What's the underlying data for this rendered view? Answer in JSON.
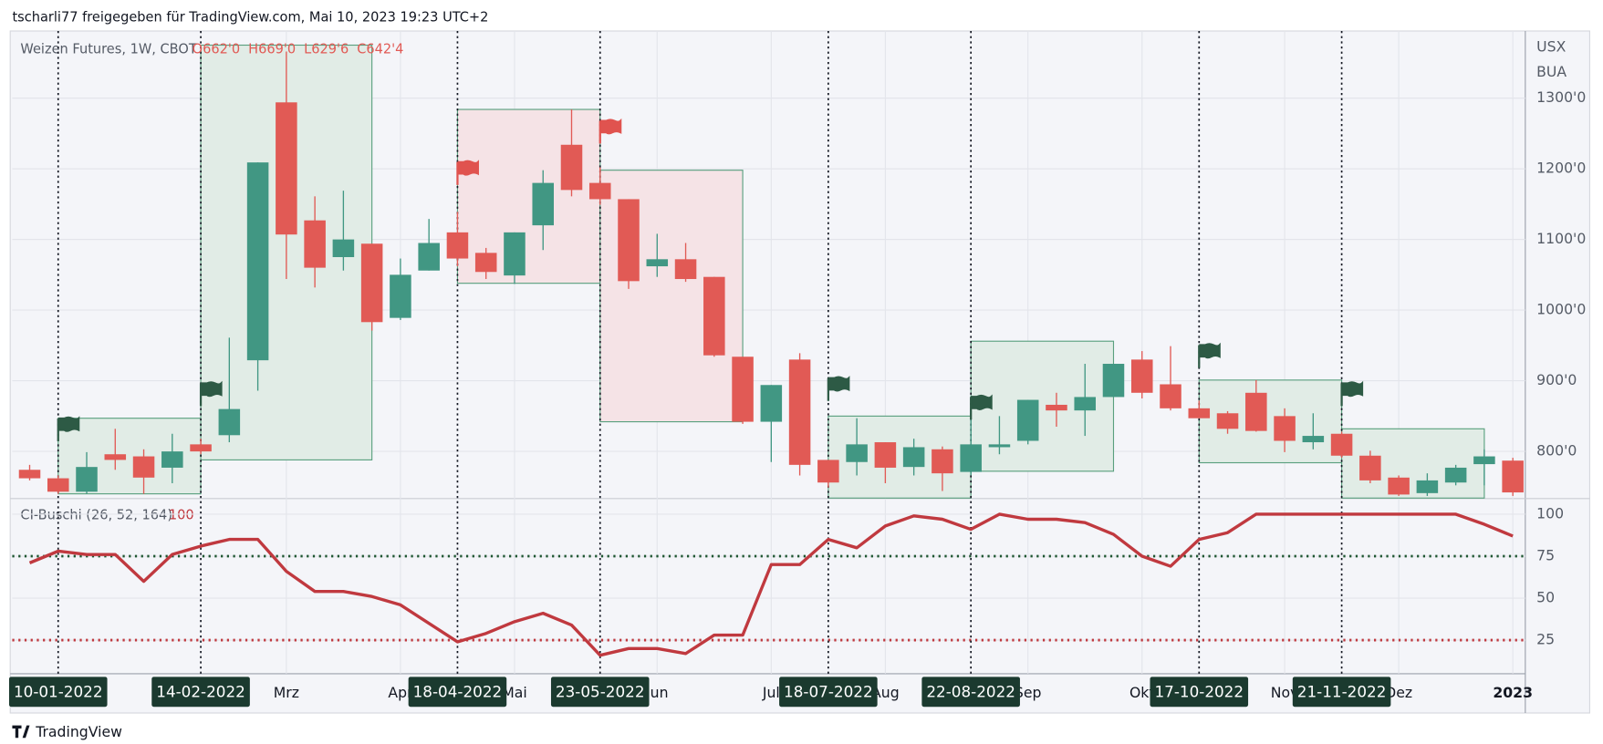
{
  "header": "tscharli77 freigegeben für TradingView.com, Mai 10, 2023 19:23 UTC+2",
  "footer": "TradingView",
  "chart_data": [
    {
      "type": "candlestick",
      "title": "Weizen Futures, 1W, CBOT",
      "ohlc_labels": [
        "O662'0",
        "H669'0",
        "L629'6",
        "C642'4"
      ],
      "axis_units": [
        "USX",
        "BUA"
      ],
      "up_color": "#419783",
      "down_color": "#e15a55",
      "x": [
        "03-01-2022",
        "10-01-2022",
        "17-01-2022",
        "24-01-2022",
        "31-01-2022",
        "07-02-2022",
        "14-02-2022",
        "21-02-2022",
        "28-02-2022",
        "07-03-2022",
        "14-03-2022",
        "21-03-2022",
        "28-03-2022",
        "04-04-2022",
        "11-04-2022",
        "18-04-2022",
        "25-04-2022",
        "02-05-2022",
        "09-05-2022",
        "16-05-2022",
        "23-05-2022",
        "30-05-2022",
        "06-06-2022",
        "13-06-2022",
        "20-06-2022",
        "27-06-2022",
        "04-07-2022",
        "11-07-2022",
        "18-07-2022",
        "25-07-2022",
        "01-08-2022",
        "08-08-2022",
        "15-08-2022",
        "22-08-2022",
        "29-08-2022",
        "05-09-2022",
        "12-09-2022",
        "19-09-2022",
        "26-09-2022",
        "03-10-2022",
        "10-10-2022",
        "17-10-2022",
        "24-10-2022",
        "31-10-2022",
        "07-11-2022",
        "14-11-2022",
        "21-11-2022",
        "28-11-2022",
        "05-12-2022",
        "12-12-2022",
        "19-12-2022",
        "26-12-2022",
        "02-01-2023"
      ],
      "open": [
        774,
        762,
        743,
        796,
        793,
        777,
        810,
        823,
        929,
        1294,
        1127,
        1075,
        1094,
        989,
        1056,
        1110,
        1081,
        1049,
        1120,
        1234,
        1180,
        1157,
        1062,
        1072,
        1047,
        934,
        842,
        930,
        788,
        785,
        813,
        778,
        803,
        771,
        806,
        815,
        866,
        858,
        877,
        930,
        895,
        861,
        854,
        883,
        850,
        813,
        825,
        794,
        763,
        741,
        756,
        782,
        787
      ],
      "high": [
        781,
        766,
        799,
        832,
        803,
        825,
        818,
        961,
        1209,
        1366,
        1161,
        1169,
        1094,
        1073,
        1129,
        1139,
        1088,
        1110,
        1198,
        1284,
        1202,
        1157,
        1108,
        1095,
        1047,
        934,
        894,
        939,
        788,
        847,
        813,
        818,
        807,
        854,
        850,
        873,
        883,
        924,
        924,
        942,
        949,
        872,
        857,
        901,
        861,
        854,
        828,
        801,
        766,
        769,
        781,
        803,
        791
      ],
      "low": [
        759,
        740,
        740,
        774,
        740,
        755,
        796,
        813,
        886,
        1044,
        1032,
        1056,
        971,
        986,
        1056,
        1062,
        1044,
        1037,
        1085,
        1161,
        1149,
        1030,
        1047,
        1040,
        934,
        839,
        785,
        766,
        749,
        766,
        755,
        766,
        744,
        766,
        796,
        810,
        835,
        822,
        877,
        875,
        858,
        847,
        825,
        828,
        799,
        803,
        791,
        755,
        737,
        737,
        752,
        752,
        737
      ],
      "close": [
        762,
        743,
        778,
        788,
        763,
        800,
        800,
        860,
        1209,
        1107,
        1060,
        1100,
        983,
        1050,
        1095,
        1073,
        1054,
        1110,
        1180,
        1170,
        1157,
        1041,
        1072,
        1044,
        936,
        842,
        894,
        781,
        756,
        810,
        777,
        806,
        769,
        810,
        810,
        873,
        858,
        877,
        924,
        883,
        861,
        847,
        832,
        829,
        815,
        822,
        794,
        759,
        739,
        759,
        777,
        793,
        742
      ],
      "ylim": [
        734,
        1395
      ],
      "yticks": [
        {
          "value": 1300,
          "label": "1300'0"
        },
        {
          "value": 1200,
          "label": "1200'0"
        },
        {
          "value": 1100,
          "label": "1100'0"
        },
        {
          "value": 1000,
          "label": "1000'0"
        },
        {
          "value": 900,
          "label": "900'0"
        },
        {
          "value": 800,
          "label": "800'0"
        }
      ],
      "xticks": [
        {
          "value": "07-03-2022",
          "label": "Mrz"
        },
        {
          "value": "04-04-2022",
          "label": "Apr"
        },
        {
          "value": "02-05-2022",
          "label": "Mai"
        },
        {
          "value": "06-06-2022",
          "label": "Jun"
        },
        {
          "value": "04-07-2022",
          "label": "Jul"
        },
        {
          "value": "01-08-2022",
          "label": "Aug"
        },
        {
          "value": "05-09-2022",
          "label": "Sep"
        },
        {
          "value": "03-10-2022",
          "label": "Okt"
        },
        {
          "value": "07-11-2022",
          "label": "Nov"
        },
        {
          "value": "05-12-2022",
          "label": "Dez"
        },
        {
          "value": "02-01-2023",
          "label": "2023"
        }
      ],
      "events": [
        "10-01-2022",
        "14-02-2022",
        "18-04-2022",
        "23-05-2022",
        "18-07-2022",
        "22-08-2022",
        "17-10-2022",
        "21-11-2022"
      ],
      "boxes": [
        {
          "from": "10-01-2022",
          "to": "14-02-2022",
          "top": 847,
          "bottom": 740,
          "color": "green"
        },
        {
          "from": "14-02-2022",
          "to": "28-03-2022",
          "top": 1375,
          "bottom": 788,
          "color": "green"
        },
        {
          "from": "18-04-2022",
          "to": "23-05-2022",
          "top": 1284,
          "bottom": 1038,
          "color": "red"
        },
        {
          "from": "23-05-2022",
          "to": "27-06-2022",
          "top": 1198,
          "bottom": 842,
          "color": "red"
        },
        {
          "from": "18-07-2022",
          "to": "22-08-2022",
          "top": 850,
          "bottom": 734,
          "color": "green"
        },
        {
          "from": "22-08-2022",
          "to": "26-09-2022",
          "top": 956,
          "bottom": 772,
          "color": "green"
        },
        {
          "from": "17-10-2022",
          "to": "21-11-2022",
          "top": 901,
          "bottom": 784,
          "color": "green"
        },
        {
          "from": "21-11-2022",
          "to": "26-12-2022",
          "top": 832,
          "bottom": 734,
          "color": "green"
        }
      ],
      "grid": true
    },
    {
      "type": "line",
      "name": "CI-Buschi (26, 52, 164)",
      "legend_value": 100,
      "color": "#c0393f",
      "values": [
        71,
        78,
        76,
        76,
        60,
        76,
        81,
        85,
        85,
        66,
        54,
        54,
        51,
        46,
        35,
        24,
        29,
        36,
        41,
        34,
        16,
        20,
        20,
        17,
        28,
        28,
        70,
        70,
        85,
        80,
        93,
        99,
        97,
        91,
        100,
        97,
        97,
        95,
        88,
        75,
        69,
        85,
        89,
        100,
        100,
        100,
        100,
        100,
        100,
        100,
        100,
        94,
        87
      ],
      "ylim": [
        5,
        109
      ],
      "yticks": [
        100,
        75,
        50,
        25
      ],
      "hlines": [
        {
          "value": 75,
          "color": "#1e5631"
        },
        {
          "value": 25,
          "color": "#c0393f"
        }
      ],
      "grid": true
    }
  ]
}
